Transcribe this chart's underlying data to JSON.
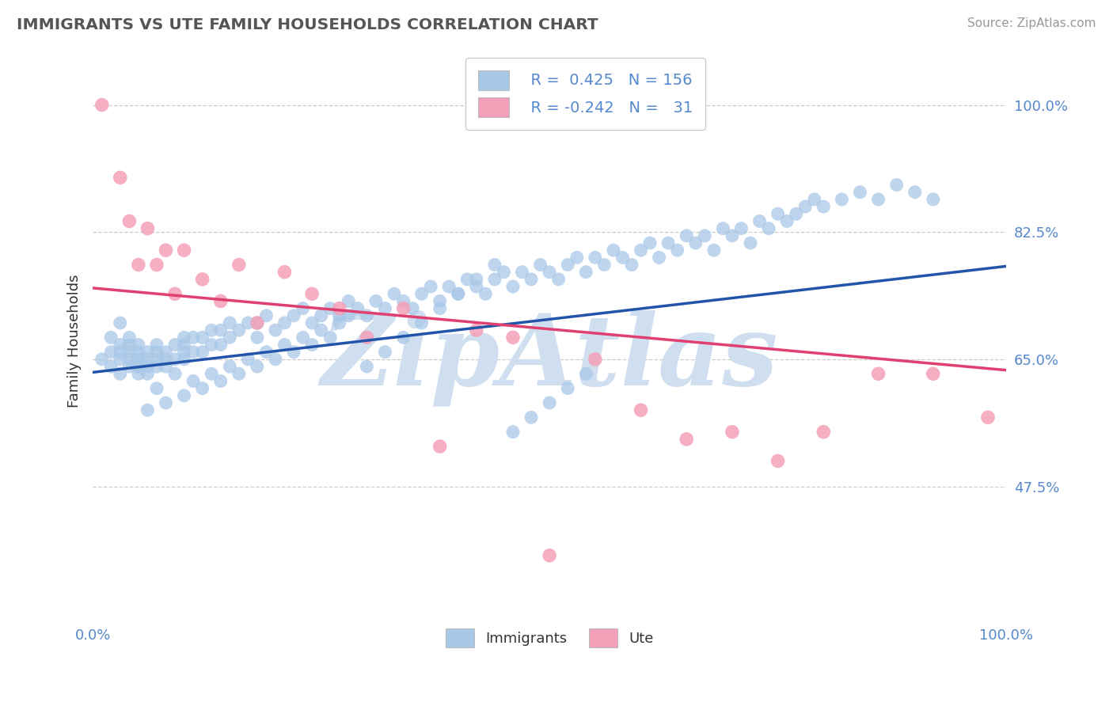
{
  "title": "IMMIGRANTS VS UTE FAMILY HOUSEHOLDS CORRELATION CHART",
  "source": "Source: ZipAtlas.com",
  "ylabel": "Family Households",
  "y_ticks": [
    0.475,
    0.65,
    0.825,
    1.0
  ],
  "y_tick_labels": [
    "47.5%",
    "65.0%",
    "82.5%",
    "100.0%"
  ],
  "legend_entry1_label": "Immigrants",
  "legend_entry1_R": "0.425",
  "legend_entry1_N": "156",
  "legend_entry2_label": "Ute",
  "legend_entry2_R": "-0.242",
  "legend_entry2_N": "31",
  "blue_dot_color": "#a8c8e8",
  "pink_dot_color": "#f4a0b8",
  "blue_line_color": "#2255aa",
  "pink_line_color": "#e04070",
  "background_color": "#ffffff",
  "grid_color": "#cccccc",
  "title_color": "#555555",
  "axis_label_color": "#5588cc",
  "watermark_color": "#d0dff0",
  "blue_trend_y0": 0.632,
  "blue_trend_y1": 0.778,
  "pink_trend_y0": 0.748,
  "pink_trend_y1": 0.635,
  "xlim": [
    0.0,
    1.0
  ],
  "ylim": [
    0.29,
    1.06
  ],
  "blue_scatter_x": [
    0.01,
    0.02,
    0.02,
    0.02,
    0.03,
    0.03,
    0.03,
    0.03,
    0.03,
    0.04,
    0.04,
    0.04,
    0.04,
    0.04,
    0.05,
    0.05,
    0.05,
    0.05,
    0.05,
    0.05,
    0.05,
    0.06,
    0.06,
    0.06,
    0.06,
    0.07,
    0.07,
    0.07,
    0.07,
    0.08,
    0.08,
    0.08,
    0.09,
    0.09,
    0.1,
    0.1,
    0.1,
    0.1,
    0.11,
    0.11,
    0.12,
    0.12,
    0.13,
    0.13,
    0.14,
    0.14,
    0.15,
    0.15,
    0.16,
    0.17,
    0.18,
    0.18,
    0.19,
    0.2,
    0.21,
    0.22,
    0.23,
    0.24,
    0.25,
    0.26,
    0.27,
    0.28,
    0.29,
    0.3,
    0.31,
    0.32,
    0.33,
    0.34,
    0.35,
    0.36,
    0.37,
    0.38,
    0.39,
    0.4,
    0.41,
    0.42,
    0.43,
    0.44,
    0.45,
    0.46,
    0.47,
    0.48,
    0.49,
    0.5,
    0.51,
    0.52,
    0.53,
    0.54,
    0.55,
    0.56,
    0.57,
    0.58,
    0.59,
    0.6,
    0.61,
    0.62,
    0.63,
    0.64,
    0.65,
    0.66,
    0.67,
    0.68,
    0.69,
    0.7,
    0.71,
    0.72,
    0.73,
    0.74,
    0.75,
    0.76,
    0.77,
    0.78,
    0.79,
    0.8,
    0.82,
    0.84,
    0.86,
    0.88,
    0.9,
    0.92,
    0.06,
    0.07,
    0.08,
    0.09,
    0.1,
    0.11,
    0.12,
    0.13,
    0.14,
    0.15,
    0.16,
    0.17,
    0.18,
    0.19,
    0.2,
    0.21,
    0.22,
    0.23,
    0.24,
    0.25,
    0.26,
    0.27,
    0.28,
    0.3,
    0.32,
    0.34,
    0.36,
    0.38,
    0.4,
    0.42,
    0.44,
    0.46,
    0.48,
    0.5,
    0.52,
    0.54
  ],
  "blue_scatter_y": [
    0.65,
    0.66,
    0.68,
    0.64,
    0.67,
    0.65,
    0.63,
    0.66,
    0.7,
    0.65,
    0.67,
    0.64,
    0.66,
    0.68,
    0.64,
    0.66,
    0.65,
    0.63,
    0.67,
    0.65,
    0.64,
    0.66,
    0.65,
    0.63,
    0.64,
    0.66,
    0.65,
    0.64,
    0.67,
    0.65,
    0.64,
    0.66,
    0.67,
    0.65,
    0.68,
    0.66,
    0.65,
    0.67,
    0.68,
    0.66,
    0.68,
    0.66,
    0.69,
    0.67,
    0.69,
    0.67,
    0.7,
    0.68,
    0.69,
    0.7,
    0.7,
    0.68,
    0.71,
    0.69,
    0.7,
    0.71,
    0.72,
    0.7,
    0.71,
    0.72,
    0.71,
    0.73,
    0.72,
    0.71,
    0.73,
    0.72,
    0.74,
    0.73,
    0.72,
    0.74,
    0.75,
    0.73,
    0.75,
    0.74,
    0.76,
    0.75,
    0.74,
    0.76,
    0.77,
    0.75,
    0.77,
    0.76,
    0.78,
    0.77,
    0.76,
    0.78,
    0.79,
    0.77,
    0.79,
    0.78,
    0.8,
    0.79,
    0.78,
    0.8,
    0.81,
    0.79,
    0.81,
    0.8,
    0.82,
    0.81,
    0.82,
    0.8,
    0.83,
    0.82,
    0.83,
    0.81,
    0.84,
    0.83,
    0.85,
    0.84,
    0.85,
    0.86,
    0.87,
    0.86,
    0.87,
    0.88,
    0.87,
    0.89,
    0.88,
    0.87,
    0.58,
    0.61,
    0.59,
    0.63,
    0.6,
    0.62,
    0.61,
    0.63,
    0.62,
    0.64,
    0.63,
    0.65,
    0.64,
    0.66,
    0.65,
    0.67,
    0.66,
    0.68,
    0.67,
    0.69,
    0.68,
    0.7,
    0.71,
    0.64,
    0.66,
    0.68,
    0.7,
    0.72,
    0.74,
    0.76,
    0.78,
    0.55,
    0.57,
    0.59,
    0.61,
    0.63
  ],
  "pink_scatter_x": [
    0.01,
    0.03,
    0.04,
    0.05,
    0.06,
    0.07,
    0.08,
    0.09,
    0.1,
    0.12,
    0.14,
    0.16,
    0.18,
    0.21,
    0.24,
    0.27,
    0.3,
    0.34,
    0.38,
    0.42,
    0.46,
    0.5,
    0.55,
    0.6,
    0.65,
    0.7,
    0.75,
    0.8,
    0.86,
    0.92,
    0.98
  ],
  "pink_scatter_y": [
    1.0,
    0.9,
    0.84,
    0.78,
    0.83,
    0.78,
    0.8,
    0.74,
    0.8,
    0.76,
    0.73,
    0.78,
    0.7,
    0.77,
    0.74,
    0.72,
    0.68,
    0.72,
    0.53,
    0.69,
    0.68,
    0.38,
    0.65,
    0.58,
    0.54,
    0.55,
    0.51,
    0.55,
    0.63,
    0.63,
    0.57
  ]
}
